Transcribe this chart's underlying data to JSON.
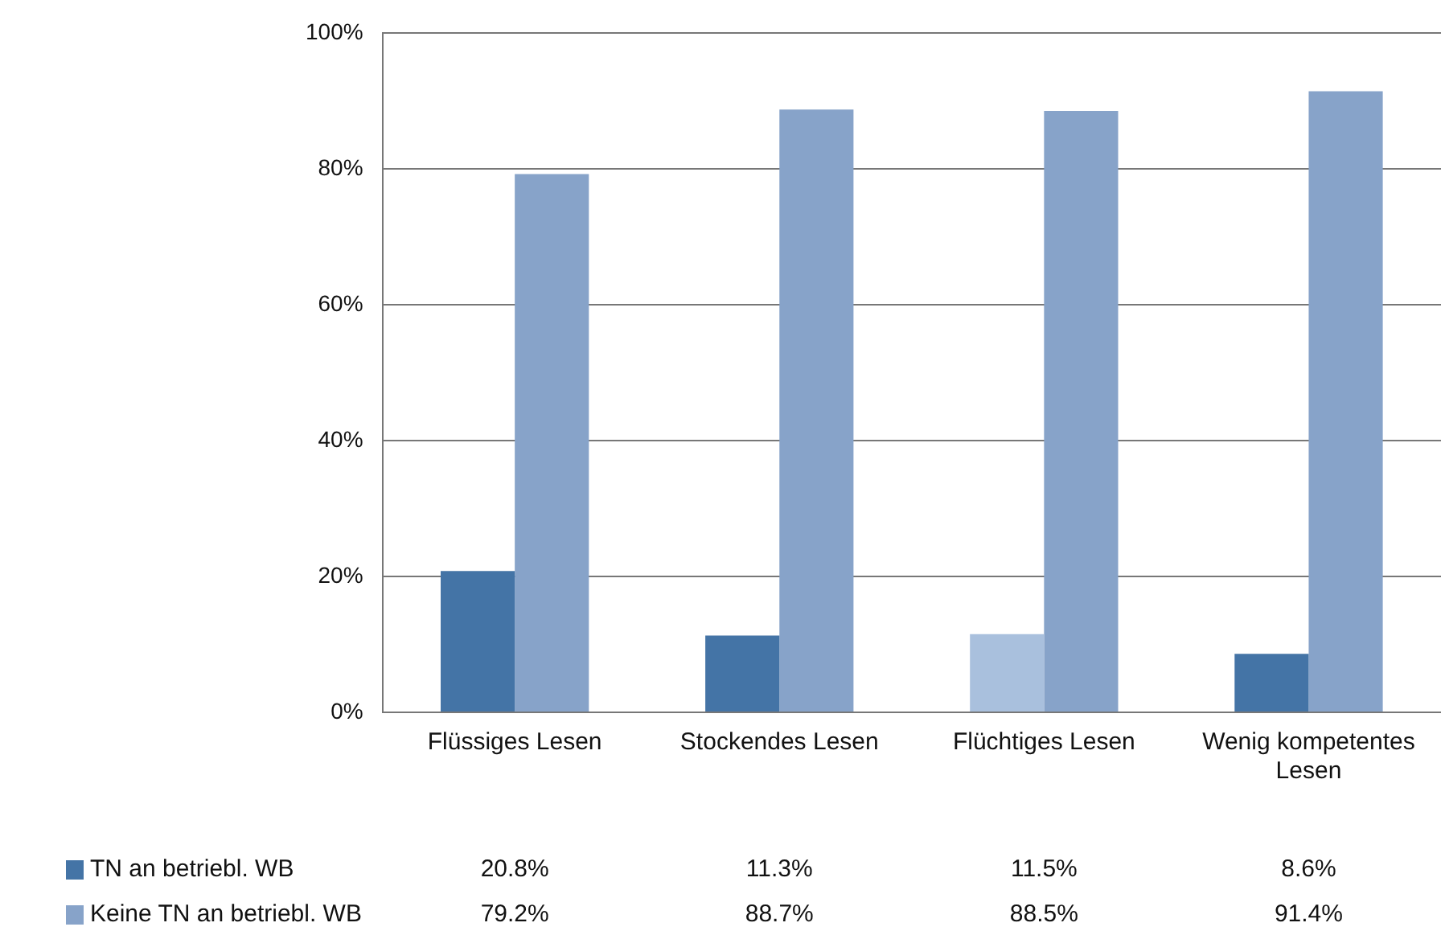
{
  "chart_data": {
    "type": "bar",
    "categories": [
      "Flüssiges Lesen",
      "Stockendes Lesen",
      "Flüchtiges Lesen",
      "Wenig kompetentes Lesen"
    ],
    "series": [
      {
        "name": "TN an betriebl. WB",
        "color": "#4474a6",
        "colors": [
          "#4474a6",
          "#4474a6",
          "#a9c0dd",
          "#4474a6"
        ],
        "values": [
          20.8,
          11.3,
          11.5,
          8.6
        ],
        "value_labels": [
          "20.8%",
          "11.3%",
          "11.5%",
          "8.6%"
        ]
      },
      {
        "name": "Keine TN an betriebl. WB",
        "color": "#87a3c9",
        "values": [
          79.2,
          88.7,
          88.5,
          91.4
        ],
        "value_labels": [
          "79.2%",
          "88.7%",
          "88.5%",
          "91.4%"
        ]
      }
    ],
    "ylim": [
      0,
      100
    ],
    "yticks": [
      {
        "value": 0,
        "label": "0%"
      },
      {
        "value": 20,
        "label": "20%"
      },
      {
        "value": 40,
        "label": "40%"
      },
      {
        "value": 60,
        "label": "60%"
      },
      {
        "value": 80,
        "label": "80%"
      },
      {
        "value": 100,
        "label": "100%"
      }
    ],
    "grid": "y",
    "legend": "bottom left"
  }
}
